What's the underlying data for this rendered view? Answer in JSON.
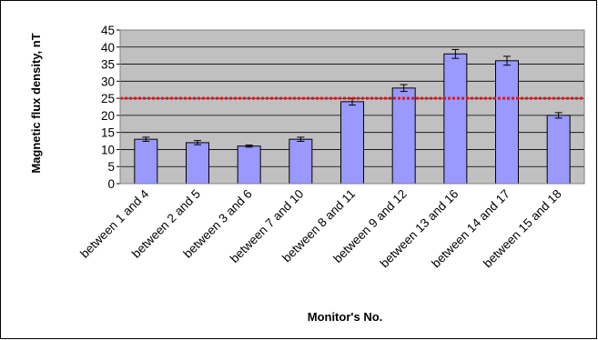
{
  "chart_data": {
    "type": "bar",
    "categories": [
      "between 1 and 4",
      "between 2 and 5",
      "between 3 and 6",
      "between 7 and 10",
      "between 8 and 11",
      "between 9 and 12",
      "between 13 and 16",
      "between 14 and 17",
      "between 15 and 18"
    ],
    "values": [
      13,
      12,
      11,
      13,
      24,
      28,
      38,
      36,
      20
    ],
    "error": [
      0.6,
      0.6,
      0.3,
      0.6,
      1.0,
      1.0,
      1.3,
      1.3,
      0.8
    ],
    "title": "",
    "xlabel": "Monitor's No.",
    "ylabel": "Magnetic flux density, nT",
    "ylim": [
      0,
      45
    ],
    "yticks": [
      0,
      5,
      10,
      15,
      20,
      25,
      30,
      35,
      40,
      45
    ],
    "grid": true,
    "reference_line": {
      "y": 25,
      "color": "#e0141e",
      "style": "dotted"
    },
    "colors": {
      "bar": "#9999ff",
      "plot_background": "#c0c0c0",
      "grid": "#000000"
    },
    "legend": "none"
  }
}
